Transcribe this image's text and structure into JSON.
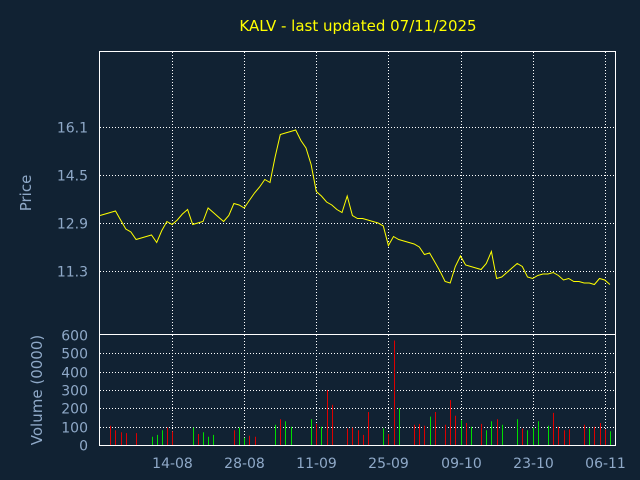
{
  "chart_data": {
    "type": "line",
    "title": "KALV - last updated 07/11/2025",
    "colors": {
      "background": "#112233",
      "plot_border": "#ffffff",
      "grid": "#ffffff",
      "title": "#ffff00",
      "axis_text": "#8fa9c8",
      "price_line": "#ffff00",
      "volume_up": "#00dd00",
      "volume_down": "#dd0000"
    },
    "price_panel": {
      "ylabel": "Price",
      "ylim": [
        9.2,
        18.6
      ],
      "yticks": [
        "16.1",
        "14.5",
        "12.9",
        "11.3"
      ],
      "grid": true
    },
    "volume_panel": {
      "ylabel": "Volume (0000)",
      "ylim": [
        0,
        600
      ],
      "yticks": [
        "0",
        "100",
        "200",
        "300",
        "400",
        "500",
        "600"
      ],
      "grid": true
    },
    "xticks": [
      "14-08",
      "28-08",
      "11-09",
      "25-09",
      "09-10",
      "23-10",
      "06-11"
    ],
    "xtick_days": [
      14,
      28,
      42,
      56,
      70,
      84,
      98
    ],
    "x_range": [
      0,
      100
    ],
    "series": [
      {
        "kind": "price",
        "points": [
          [
            0,
            13.15
          ],
          [
            1,
            13.2
          ],
          [
            2,
            13.25
          ],
          [
            3,
            13.3
          ],
          [
            4,
            13.0
          ],
          [
            5,
            12.7
          ],
          [
            6,
            12.6
          ],
          [
            7,
            12.35
          ],
          [
            8,
            12.4
          ],
          [
            9,
            12.45
          ],
          [
            10,
            12.5
          ],
          [
            11,
            12.25
          ],
          [
            12,
            12.65
          ],
          [
            13,
            12.95
          ],
          [
            14,
            12.85
          ],
          [
            15,
            13.0
          ],
          [
            16,
            13.2
          ],
          [
            17,
            13.35
          ],
          [
            18,
            12.85
          ],
          [
            19,
            12.9
          ],
          [
            20,
            12.95
          ],
          [
            21,
            13.4
          ],
          [
            22,
            13.25
          ],
          [
            23,
            13.1
          ],
          [
            24,
            12.95
          ],
          [
            25,
            13.15
          ],
          [
            26,
            13.55
          ],
          [
            27,
            13.5
          ],
          [
            28,
            13.4
          ],
          [
            29,
            13.65
          ],
          [
            30,
            13.9
          ],
          [
            31,
            14.1
          ],
          [
            32,
            14.35
          ],
          [
            33,
            14.25
          ],
          [
            34,
            15.1
          ],
          [
            35,
            15.85
          ],
          [
            36,
            15.9
          ],
          [
            37,
            15.95
          ],
          [
            38,
            16.0
          ],
          [
            39,
            15.65
          ],
          [
            40,
            15.4
          ],
          [
            41,
            14.85
          ],
          [
            42,
            13.95
          ],
          [
            43,
            13.8
          ],
          [
            44,
            13.6
          ],
          [
            45,
            13.5
          ],
          [
            46,
            13.35
          ],
          [
            47,
            13.25
          ],
          [
            48,
            13.8
          ],
          [
            49,
            13.15
          ],
          [
            50,
            13.05
          ],
          [
            51,
            13.05
          ],
          [
            52,
            13.0
          ],
          [
            53,
            12.95
          ],
          [
            54,
            12.9
          ],
          [
            55,
            12.8
          ],
          [
            56,
            12.15
          ],
          [
            57,
            12.45
          ],
          [
            58,
            12.35
          ],
          [
            59,
            12.3
          ],
          [
            60,
            12.25
          ],
          [
            61,
            12.2
          ],
          [
            62,
            12.1
          ],
          [
            63,
            11.85
          ],
          [
            64,
            11.9
          ],
          [
            65,
            11.6
          ],
          [
            66,
            11.3
          ],
          [
            67,
            10.95
          ],
          [
            68,
            10.9
          ],
          [
            69,
            11.45
          ],
          [
            70,
            11.8
          ],
          [
            71,
            11.5
          ],
          [
            72,
            11.45
          ],
          [
            73,
            11.4
          ],
          [
            74,
            11.35
          ],
          [
            75,
            11.55
          ],
          [
            76,
            11.95
          ],
          [
            77,
            11.05
          ],
          [
            78,
            11.1
          ],
          [
            79,
            11.25
          ],
          [
            80,
            11.4
          ],
          [
            81,
            11.55
          ],
          [
            82,
            11.45
          ],
          [
            83,
            11.1
          ],
          [
            84,
            11.05
          ],
          [
            85,
            11.15
          ],
          [
            86,
            11.2
          ],
          [
            87,
            11.2
          ],
          [
            88,
            11.25
          ],
          [
            89,
            11.15
          ],
          [
            90,
            11.0
          ],
          [
            91,
            11.05
          ],
          [
            92,
            10.95
          ],
          [
            93,
            10.95
          ],
          [
            94,
            10.9
          ],
          [
            95,
            10.9
          ],
          [
            96,
            10.85
          ],
          [
            97,
            11.05
          ],
          [
            98,
            11.0
          ],
          [
            99,
            10.85
          ]
        ]
      },
      {
        "kind": "volume",
        "bars": [
          [
            2,
            105,
            "down"
          ],
          [
            3,
            80,
            "down"
          ],
          [
            4,
            70,
            "down"
          ],
          [
            5,
            65,
            "down"
          ],
          [
            7,
            65,
            "down"
          ],
          [
            10,
            45,
            "up"
          ],
          [
            11,
            55,
            "up"
          ],
          [
            12,
            80,
            "up"
          ],
          [
            13,
            95,
            "down"
          ],
          [
            14,
            75,
            "down"
          ],
          [
            18,
            95,
            "up"
          ],
          [
            19,
            60,
            "down"
          ],
          [
            20,
            70,
            "up"
          ],
          [
            21,
            45,
            "up"
          ],
          [
            22,
            55,
            "up"
          ],
          [
            26,
            80,
            "down"
          ],
          [
            27,
            95,
            "up"
          ],
          [
            28,
            40,
            "up"
          ],
          [
            29,
            50,
            "down"
          ],
          [
            30,
            45,
            "down"
          ],
          [
            34,
            110,
            "up"
          ],
          [
            35,
            140,
            "down"
          ],
          [
            36,
            130,
            "up"
          ],
          [
            37,
            100,
            "up"
          ],
          [
            41,
            140,
            "up"
          ],
          [
            42,
            115,
            "down"
          ],
          [
            43,
            100,
            "up"
          ],
          [
            44,
            300,
            "down"
          ],
          [
            45,
            220,
            "down"
          ],
          [
            48,
            90,
            "down"
          ],
          [
            49,
            95,
            "down"
          ],
          [
            50,
            80,
            "down"
          ],
          [
            51,
            55,
            "down"
          ],
          [
            52,
            180,
            "down"
          ],
          [
            55,
            90,
            "up"
          ],
          [
            56,
            60,
            "down"
          ],
          [
            57,
            570,
            "down"
          ],
          [
            58,
            200,
            "up"
          ],
          [
            61,
            110,
            "down"
          ],
          [
            62,
            115,
            "down"
          ],
          [
            63,
            105,
            "down"
          ],
          [
            64,
            155,
            "up"
          ],
          [
            65,
            180,
            "down"
          ],
          [
            67,
            110,
            "down"
          ],
          [
            68,
            245,
            "down"
          ],
          [
            69,
            160,
            "down"
          ],
          [
            70,
            135,
            "up"
          ],
          [
            71,
            120,
            "down"
          ],
          [
            72,
            100,
            "up"
          ],
          [
            74,
            115,
            "down"
          ],
          [
            75,
            80,
            "up"
          ],
          [
            76,
            130,
            "up"
          ],
          [
            77,
            140,
            "down"
          ],
          [
            78,
            110,
            "up"
          ],
          [
            81,
            140,
            "up"
          ],
          [
            82,
            90,
            "down"
          ],
          [
            83,
            80,
            "up"
          ],
          [
            84,
            95,
            "up"
          ],
          [
            85,
            130,
            "up"
          ],
          [
            87,
            105,
            "up"
          ],
          [
            88,
            175,
            "down"
          ],
          [
            89,
            100,
            "down"
          ],
          [
            90,
            80,
            "down"
          ],
          [
            91,
            85,
            "down"
          ],
          [
            94,
            110,
            "down"
          ],
          [
            95,
            90,
            "up"
          ],
          [
            96,
            100,
            "down"
          ],
          [
            97,
            120,
            "down"
          ],
          [
            98,
            85,
            "down"
          ],
          [
            99,
            75,
            "up"
          ]
        ]
      }
    ]
  }
}
